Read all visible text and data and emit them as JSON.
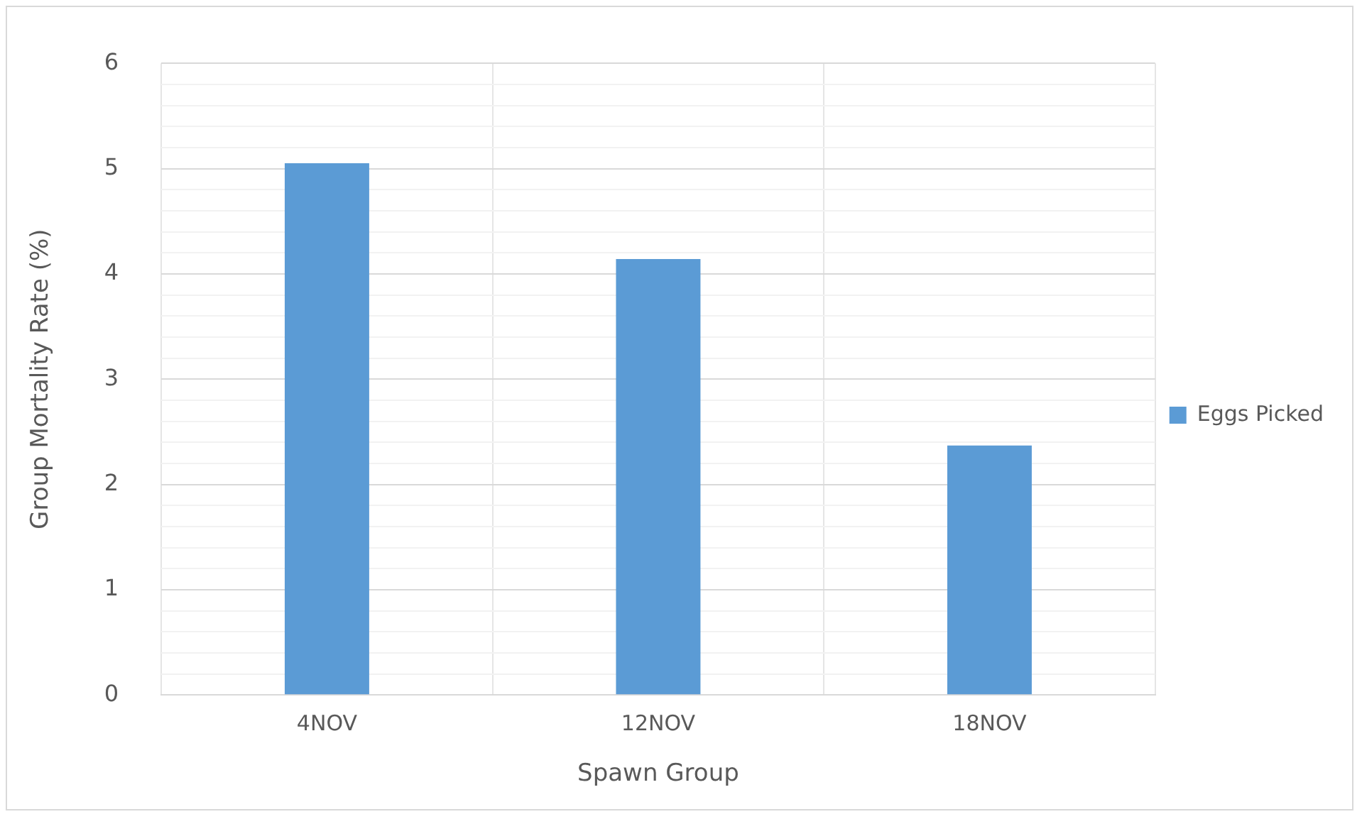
{
  "chart_data": {
    "type": "bar",
    "xlabel": "Spawn Group",
    "ylabel": "Group Mortality Rate (%)",
    "categories": [
      "4NOV",
      "12NOV",
      "18NOV"
    ],
    "series": [
      {
        "name": "Eggs Picked",
        "color": "#5b9bd5",
        "values": [
          5.05,
          4.14,
          2.37
        ]
      }
    ],
    "ylim": [
      0,
      6
    ],
    "yticks": [
      0,
      {
        "value": 0.2,
        "label": null
      },
      {
        "value": 0.4,
        "label": null
      },
      {
        "value": 0.6,
        "label": null
      },
      {
        "value": 0.8,
        "label": null
      },
      1,
      {
        "value": 1.2,
        "label": null
      },
      {
        "value": 1.4,
        "label": null
      },
      {
        "value": 1.6,
        "label": null
      },
      {
        "value": 1.8,
        "label": null
      },
      2,
      {
        "value": 2.2,
        "label": null
      },
      {
        "value": 2.4,
        "label": null
      },
      {
        "value": 2.6,
        "label": null
      },
      {
        "value": 2.8,
        "label": null
      },
      3,
      {
        "value": 3.2,
        "label": null
      },
      {
        "value": 3.4,
        "label": null
      },
      {
        "value": 3.6,
        "label": null
      },
      {
        "value": 3.8,
        "label": null
      },
      4,
      {
        "value": 4.2,
        "label": null
      },
      {
        "value": 4.4,
        "label": null
      },
      {
        "value": 4.6,
        "label": null
      },
      {
        "value": 4.8,
        "label": null
      },
      5,
      {
        "value": 5.2,
        "label": null
      },
      {
        "value": 5.4,
        "label": null
      },
      {
        "value": 5.6,
        "label": null
      },
      {
        "value": 5.8,
        "label": null
      },
      6
    ],
    "grid": true,
    "legend": "right"
  }
}
